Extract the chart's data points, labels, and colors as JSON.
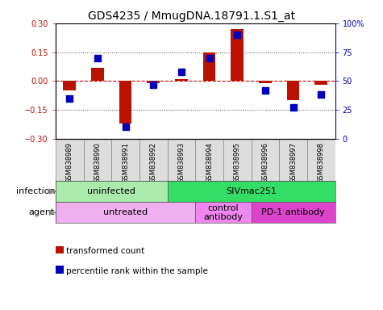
{
  "title": "GDS4235 / MmugDNA.18791.1.S1_at",
  "samples": [
    "GSM838989",
    "GSM838990",
    "GSM838991",
    "GSM838992",
    "GSM838993",
    "GSM838994",
    "GSM838995",
    "GSM838996",
    "GSM838997",
    "GSM838998"
  ],
  "red_values": [
    -0.05,
    0.07,
    -0.22,
    -0.01,
    0.01,
    0.15,
    0.27,
    -0.01,
    -0.1,
    -0.02
  ],
  "blue_values_pct": [
    35,
    70,
    10,
    47,
    58,
    70,
    90,
    42,
    27,
    38
  ],
  "ylim_left": [
    -0.3,
    0.3
  ],
  "ylim_right": [
    0,
    100
  ],
  "yticks_left": [
    -0.3,
    -0.15,
    0,
    0.15,
    0.3
  ],
  "yticks_right": [
    0,
    25,
    50,
    75,
    100
  ],
  "ytick_labels_right": [
    "0",
    "25",
    "50",
    "75",
    "100%"
  ],
  "hlines_dotted": [
    0.15,
    -0.15
  ],
  "infection_groups": [
    {
      "label": "uninfected",
      "start": 0,
      "end": 4,
      "color": "#aaeaaa"
    },
    {
      "label": "SIVmac251",
      "start": 4,
      "end": 10,
      "color": "#33dd66"
    }
  ],
  "agent_groups": [
    {
      "label": "untreated",
      "start": 0,
      "end": 5,
      "color": "#f0b0f0"
    },
    {
      "label": "control\nantibody",
      "start": 5,
      "end": 7,
      "color": "#ee88ee"
    },
    {
      "label": "PD-1 antibody",
      "start": 7,
      "end": 10,
      "color": "#dd44cc"
    }
  ],
  "red_color": "#bb1100",
  "blue_color": "#0000bb",
  "zero_line_color": "#cc0000",
  "dotted_line_color": "#555555",
  "bar_width": 0.45,
  "blue_square_size": 30,
  "title_fontsize": 10,
  "tick_fontsize": 7,
  "label_fontsize": 8,
  "legend_fontsize": 7.5,
  "sample_box_color": "#dddddd",
  "infection_label": "infection",
  "agent_label": "agent",
  "legend_items": [
    "transformed count",
    "percentile rank within the sample"
  ]
}
